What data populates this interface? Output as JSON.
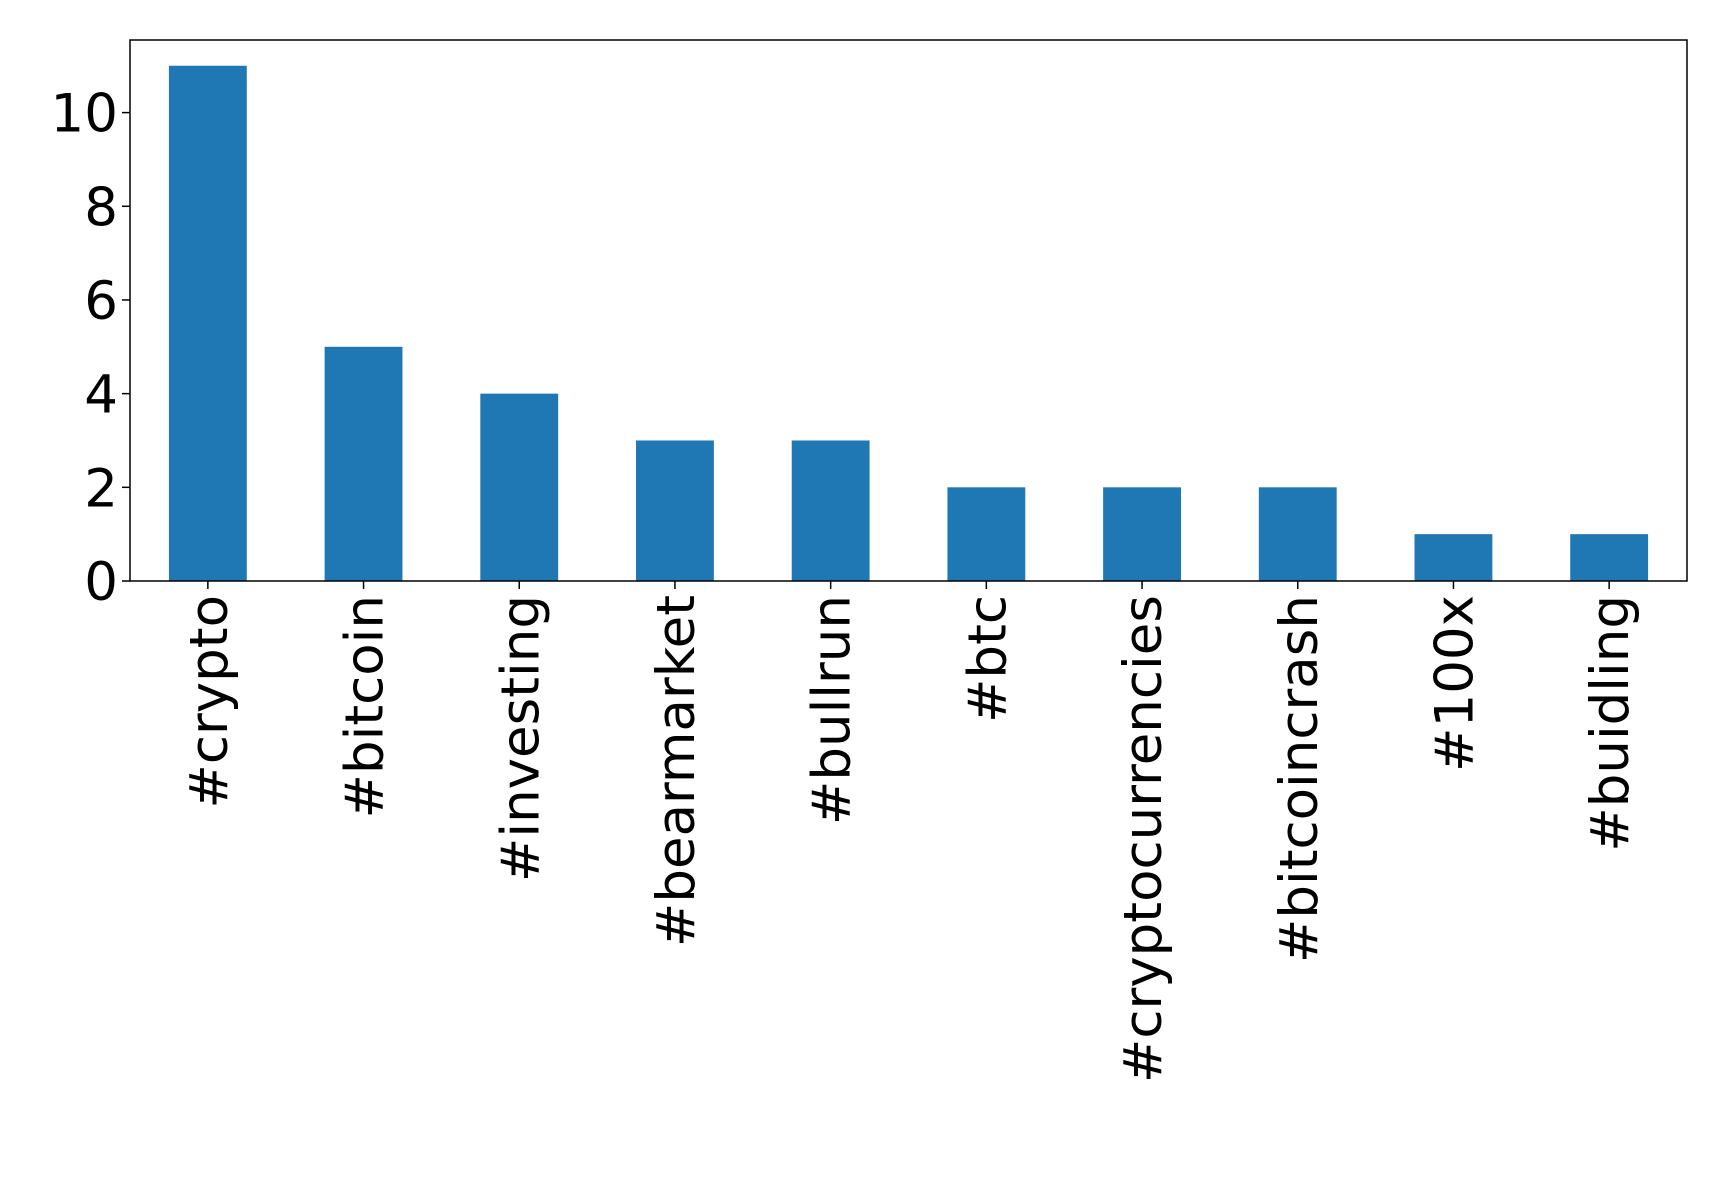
{
  "chart_data": {
    "type": "bar",
    "categories": [
      "#crypto",
      "#bitcoin",
      "#investing",
      "#bearmarket",
      "#bullrun",
      "#btc",
      "#cryptocurrencies",
      "#bitcoincrash",
      "#100x",
      "#buidling"
    ],
    "values": [
      11,
      5,
      4,
      3,
      3,
      2,
      2,
      2,
      1,
      1
    ],
    "color": "#1f77b4",
    "ylim": [
      0,
      11.55
    ],
    "yticks": [
      0,
      2,
      4,
      6,
      8,
      10
    ],
    "grid": false
  }
}
